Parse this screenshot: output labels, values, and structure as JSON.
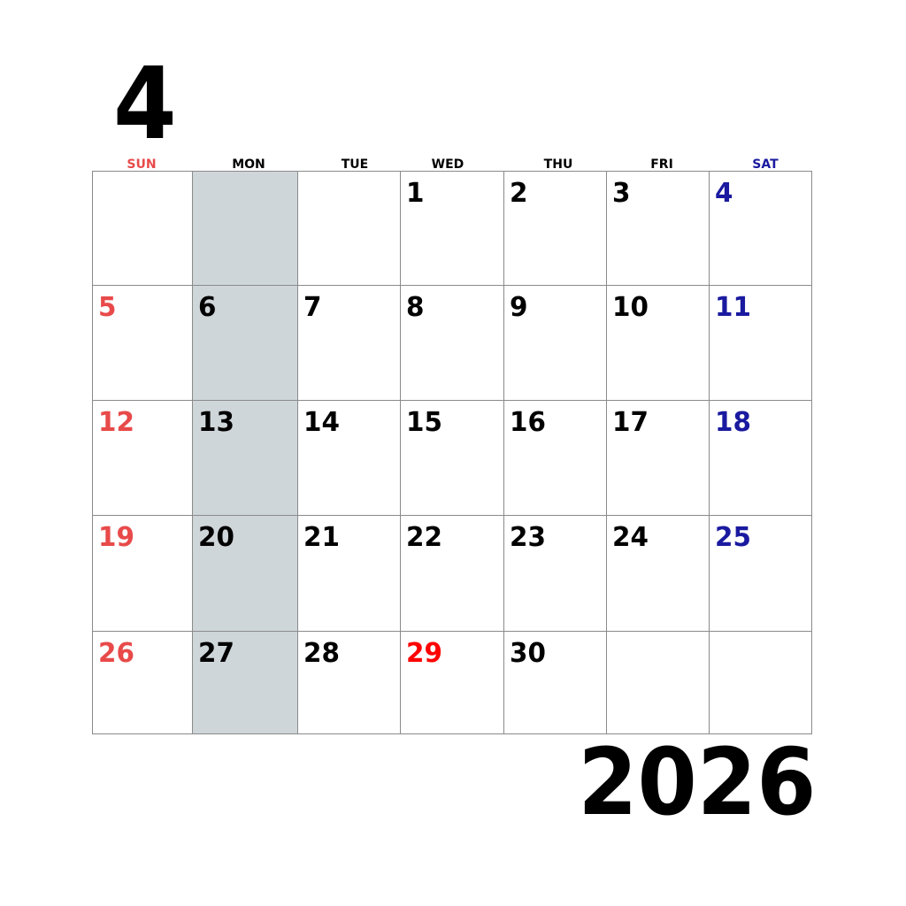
{
  "month": "4",
  "year": "2026",
  "weekdays": [
    "SUN",
    "MON",
    "TUE",
    "WED",
    "THU",
    "FRI",
    "SAT"
  ],
  "colors": {
    "sunday": "#e84a4a",
    "saturday": "#1a1aa0",
    "holiday": "#ff0000",
    "monday_column": "#cfd6da",
    "grid_line": "#8a8a8a"
  },
  "weeks": [
    [
      "",
      "",
      "",
      "1",
      "2",
      "3",
      "4"
    ],
    [
      "5",
      "6",
      "7",
      "8",
      "9",
      "10",
      "11"
    ],
    [
      "12",
      "13",
      "14",
      "15",
      "16",
      "17",
      "18"
    ],
    [
      "19",
      "20",
      "21",
      "22",
      "23",
      "24",
      "25"
    ],
    [
      "26",
      "27",
      "28",
      "29",
      "30",
      "",
      ""
    ]
  ],
  "holidays": [
    "29"
  ]
}
